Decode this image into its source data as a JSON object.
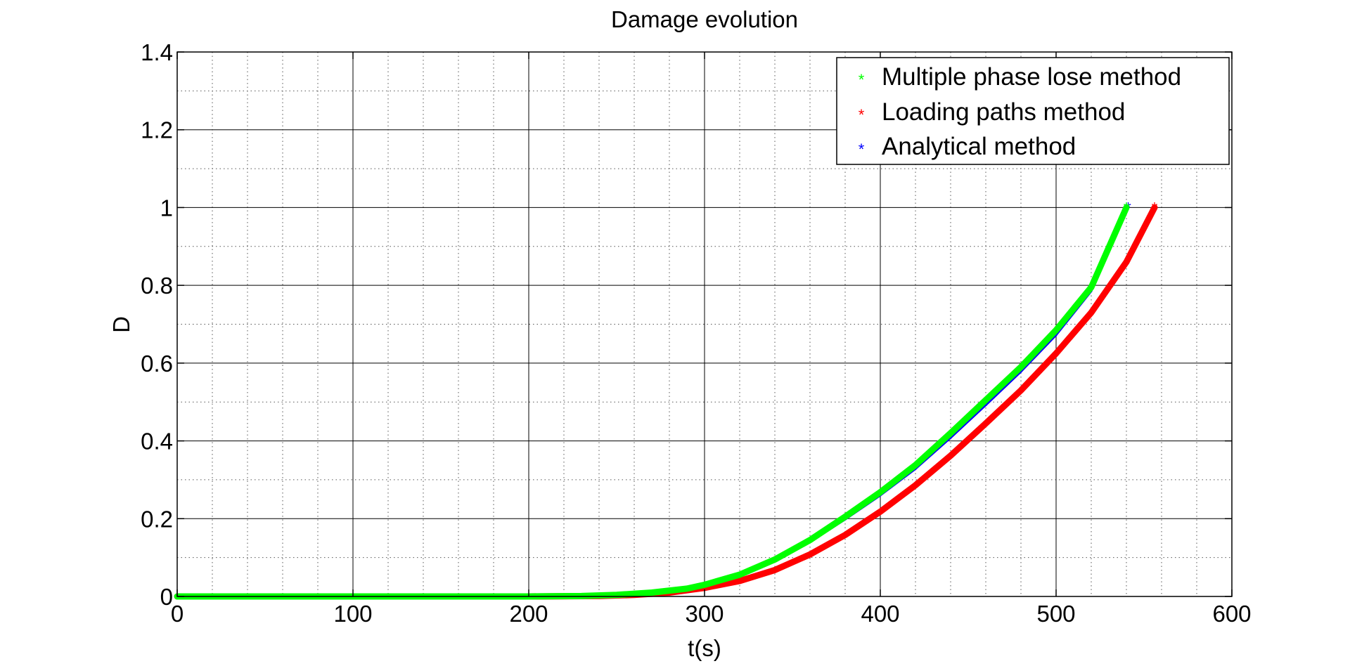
{
  "chart_data": {
    "type": "scatter",
    "title": "Damage evolution",
    "xlabel": "t(s)",
    "ylabel": "D",
    "xlim": [
      0,
      600
    ],
    "ylim": [
      0,
      1.4
    ],
    "xticks": [
      0,
      100,
      200,
      300,
      400,
      500,
      600
    ],
    "yticks": [
      0,
      0.2,
      0.4,
      0.6,
      0.8,
      1,
      1.2,
      1.4
    ],
    "xtick_labels": [
      "0",
      "100",
      "200",
      "300",
      "400",
      "500",
      "600"
    ],
    "ytick_labels": [
      "0",
      "0.2",
      "0.4",
      "0.6",
      "0.8",
      "1",
      "1.2",
      "1.4"
    ],
    "grid": true,
    "minor_grid": true,
    "legend_position": "top-right",
    "series": [
      {
        "name": "Multiple phase lose method",
        "color": "#00ff00",
        "marker": "star",
        "x": [
          0,
          100,
          200,
          230,
          250,
          270,
          290,
          300,
          320,
          340,
          360,
          380,
          400,
          420,
          440,
          460,
          480,
          500,
          520,
          540
        ],
        "y": [
          0,
          0,
          0,
          0.001,
          0.004,
          0.01,
          0.02,
          0.03,
          0.056,
          0.095,
          0.145,
          0.205,
          0.268,
          0.338,
          0.42,
          0.505,
          0.59,
          0.685,
          0.795,
          1.0
        ]
      },
      {
        "name": "Loading paths method",
        "color": "#ff0000",
        "marker": "star",
        "x": [
          0,
          100,
          200,
          240,
          260,
          280,
          300,
          320,
          340,
          360,
          380,
          400,
          420,
          440,
          460,
          480,
          500,
          520,
          540,
          556
        ],
        "y": [
          0,
          0,
          0,
          0.001,
          0.004,
          0.01,
          0.022,
          0.04,
          0.068,
          0.108,
          0.158,
          0.218,
          0.286,
          0.362,
          0.445,
          0.53,
          0.625,
          0.73,
          0.86,
          1.0
        ]
      },
      {
        "name": "Analytical method",
        "color": "#0000ff",
        "marker": "star",
        "x": [
          0,
          100,
          200,
          230,
          250,
          270,
          290,
          300,
          320,
          340,
          360,
          380,
          400,
          420,
          440,
          460,
          480,
          500,
          520,
          541
        ],
        "y": [
          0,
          0,
          0,
          0.001,
          0.004,
          0.01,
          0.02,
          0.03,
          0.055,
          0.092,
          0.14,
          0.198,
          0.26,
          0.328,
          0.408,
          0.492,
          0.578,
          0.672,
          0.785,
          1.0
        ]
      }
    ]
  }
}
